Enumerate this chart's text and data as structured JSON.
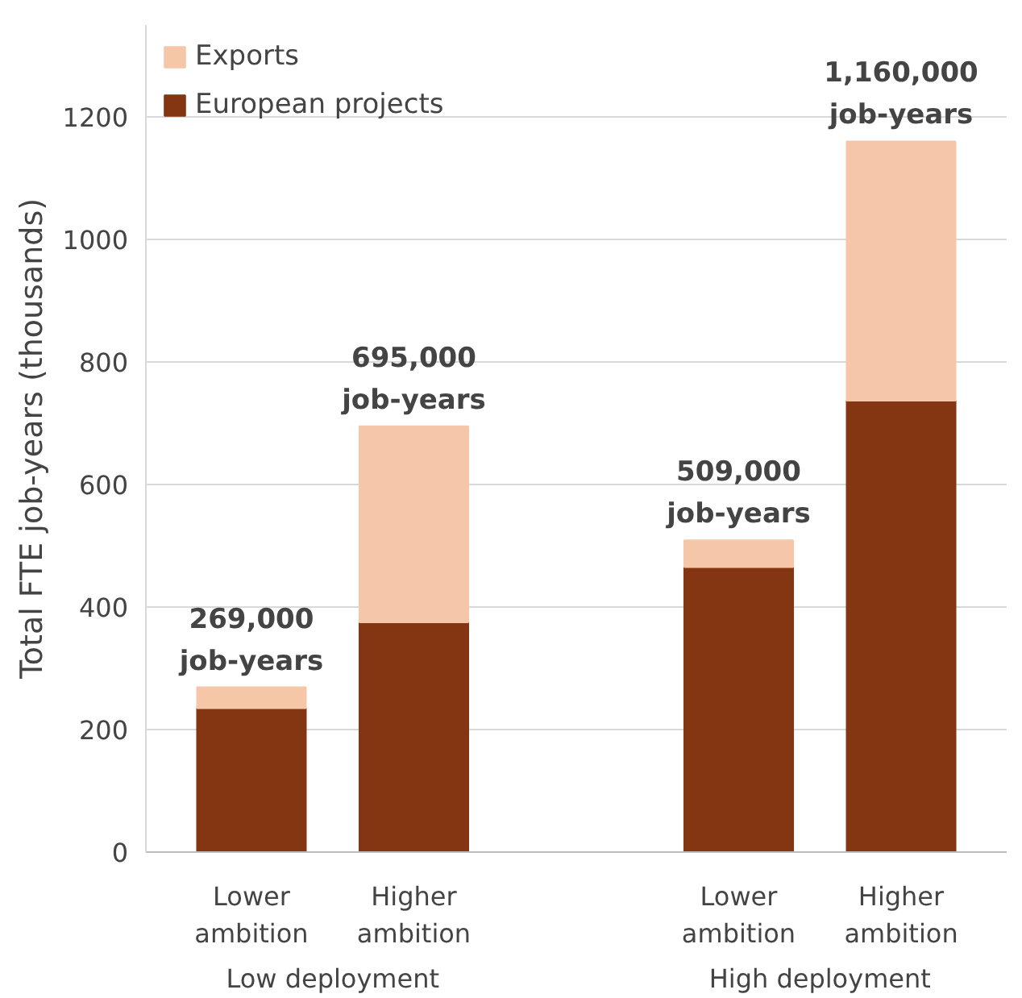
{
  "chart_data": {
    "type": "bar",
    "stacked": true,
    "ylabel": "Total FTE job-years (thousands)",
    "categories": [
      "Lower\nambition",
      "Higher\nambition",
      null,
      "Lower\nambition",
      "Higher\nambition"
    ],
    "series": [
      {
        "name": "European projects",
        "color": "#843511",
        "values": [
          235,
          375,
          null,
          465,
          737
        ]
      },
      {
        "name": "Exports",
        "color": "#f6c6a8",
        "values": [
          34,
          320,
          null,
          44,
          423
        ]
      }
    ],
    "totals": [
      "269,000\njob-years",
      "695,000\njob-years",
      null,
      "509,000\njob-years",
      "1,160,000\njob-years"
    ],
    "annotations": [
      "Low deployment",
      "High deployment"
    ],
    "ylim": [
      0,
      1350
    ],
    "yticks": [
      0,
      200,
      400,
      600,
      800,
      1000,
      1200
    ],
    "grid": "y",
    "legend": "top left"
  }
}
